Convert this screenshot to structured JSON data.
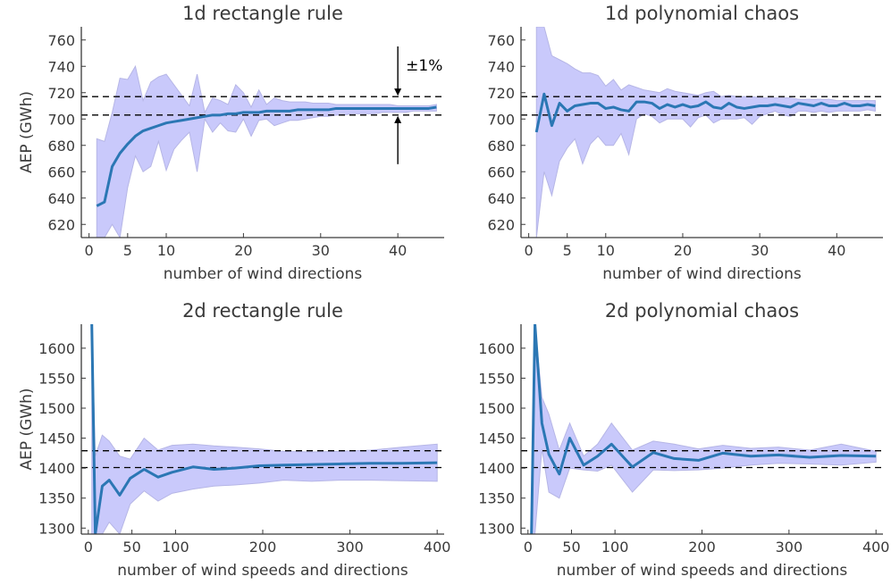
{
  "colors": {
    "line": "#2b77b4",
    "band": "#c9c9fb",
    "band_edge": "#b6b6e6",
    "ref": "#000000",
    "axis": "#3a3a3a"
  },
  "chart_data": [
    {
      "type": "line",
      "title": "1d rectangle rule",
      "xlabel": "number of wind directions",
      "ylabel": "AEP (GWh)",
      "xlim": [
        -1,
        46
      ],
      "ylim": [
        610,
        770
      ],
      "xticks": [
        0,
        5,
        10,
        20,
        30,
        40
      ],
      "yticks": [
        620,
        640,
        660,
        680,
        700,
        720,
        740,
        760
      ],
      "ref_lines": [
        703,
        717
      ],
      "annotation": "±1%",
      "annotation_x": 40,
      "series": [
        {
          "x": [
            1,
            2,
            3,
            4,
            5,
            6,
            7,
            8,
            9,
            10,
            11,
            12,
            13,
            14,
            15,
            16,
            17,
            18,
            19,
            20,
            21,
            22,
            23,
            24,
            25,
            26,
            27,
            28,
            29,
            30,
            31,
            32,
            33,
            34,
            35,
            36,
            37,
            38,
            39,
            40,
            41,
            42,
            43,
            44,
            45
          ],
          "values": [
            634,
            637,
            664,
            674,
            681,
            687,
            691,
            693,
            695,
            697,
            698,
            699,
            700,
            701,
            702,
            703,
            703,
            704,
            704,
            705,
            705,
            705,
            706,
            706,
            706,
            706,
            707,
            707,
            707,
            707,
            707,
            708,
            708,
            708,
            708,
            708,
            708,
            708,
            708,
            708,
            708,
            708,
            708,
            708,
            709
          ]
        }
      ],
      "band_upper": [
        685,
        683,
        705,
        731,
        730,
        740,
        714,
        728,
        732,
        734,
        726,
        718,
        710,
        734,
        705,
        716,
        714,
        711,
        726,
        720,
        709,
        722,
        711,
        716,
        714,
        713,
        713,
        713,
        712,
        712,
        712,
        711,
        711,
        711,
        711,
        711,
        711,
        711,
        711,
        710,
        710,
        710,
        710,
        710,
        711
      ],
      "band_lower": [
        600,
        600,
        620,
        600,
        648,
        672,
        660,
        664,
        683,
        661,
        677,
        684,
        690,
        660,
        700,
        690,
        697,
        691,
        690,
        700,
        687,
        699,
        700,
        695,
        697,
        699,
        699,
        700,
        701,
        702,
        702,
        703,
        703,
        704,
        704,
        704,
        704,
        705,
        705,
        705,
        705,
        706,
        706,
        706,
        706
      ]
    },
    {
      "type": "line",
      "title": "1d polynomial chaos",
      "xlabel": "number of wind directions",
      "ylabel": "",
      "xlim": [
        -1,
        46
      ],
      "ylim": [
        610,
        770
      ],
      "xticks": [
        0,
        5,
        10,
        20,
        30,
        40
      ],
      "yticks": [
        620,
        640,
        660,
        680,
        700,
        720,
        740,
        760
      ],
      "ref_lines": [
        703,
        717
      ],
      "series": [
        {
          "x": [
            1,
            2,
            3,
            4,
            5,
            6,
            7,
            8,
            9,
            10,
            11,
            12,
            13,
            14,
            15,
            16,
            17,
            18,
            19,
            20,
            21,
            22,
            23,
            24,
            25,
            26,
            27,
            28,
            29,
            30,
            31,
            32,
            33,
            34,
            35,
            36,
            37,
            38,
            39,
            40,
            41,
            42,
            43,
            44,
            45
          ],
          "values": [
            690,
            719,
            695,
            712,
            706,
            710,
            711,
            712,
            712,
            708,
            709,
            707,
            706,
            713,
            713,
            712,
            708,
            711,
            709,
            711,
            709,
            710,
            713,
            709,
            708,
            712,
            709,
            708,
            709,
            710,
            710,
            711,
            710,
            709,
            712,
            711,
            710,
            712,
            710,
            710,
            712,
            710,
            710,
            711,
            710
          ]
        }
      ],
      "band_upper": [
        770,
        770,
        748,
        745,
        742,
        738,
        735,
        735,
        733,
        725,
        730,
        722,
        726,
        724,
        722,
        721,
        720,
        723,
        721,
        720,
        719,
        718,
        720,
        721,
        717,
        718,
        717,
        717,
        717,
        716,
        716,
        716,
        716,
        716,
        715,
        715,
        715,
        715,
        715,
        714,
        714,
        714,
        714,
        714,
        714
      ],
      "band_lower": [
        610,
        660,
        642,
        668,
        678,
        685,
        666,
        681,
        687,
        680,
        680,
        689,
        673,
        700,
        704,
        702,
        697,
        700,
        700,
        700,
        694,
        701,
        703,
        697,
        700,
        700,
        700,
        701,
        696,
        702,
        704,
        706,
        703,
        702,
        706,
        706,
        705,
        706,
        705,
        706,
        706,
        706,
        706,
        707,
        706
      ]
    },
    {
      "type": "line",
      "title": "2d rectangle rule",
      "xlabel": "number of wind speeds and directions",
      "ylabel": "AEP (GWh)",
      "xlim": [
        -8,
        408
      ],
      "ylim": [
        1290,
        1640
      ],
      "xticks": [
        0,
        50,
        100,
        200,
        300,
        400
      ],
      "yticks": [
        1300,
        1350,
        1400,
        1450,
        1500,
        1550,
        1600
      ],
      "ref_lines": [
        1401,
        1429
      ],
      "series": [
        {
          "x": [
            4,
            8,
            16,
            24,
            36,
            48,
            64,
            80,
            96,
            120,
            144,
            168,
            196,
            224,
            256,
            288,
            324,
            360,
            400
          ],
          "values": [
            1650,
            1290,
            1370,
            1380,
            1355,
            1383,
            1398,
            1385,
            1393,
            1402,
            1398,
            1400,
            1404,
            1405,
            1406,
            1407,
            1408,
            1408,
            1409
          ]
        }
      ],
      "band_upper": [
        1650,
        1420,
        1455,
        1445,
        1420,
        1415,
        1450,
        1430,
        1438,
        1440,
        1437,
        1435,
        1432,
        1428,
        1427,
        1428,
        1430,
        1435,
        1440
      ],
      "band_lower": [
        1290,
        1290,
        1290,
        1310,
        1290,
        1340,
        1362,
        1345,
        1358,
        1365,
        1370,
        1372,
        1375,
        1380,
        1378,
        1380,
        1380,
        1379,
        1378
      ]
    },
    {
      "type": "line",
      "title": "2d polynomial chaos",
      "xlabel": "number of wind speeds and directions",
      "ylabel": "",
      "xlim": [
        -8,
        408
      ],
      "ylim": [
        1290,
        1640
      ],
      "xticks": [
        0,
        50,
        100,
        200,
        300,
        400
      ],
      "yticks": [
        1300,
        1350,
        1400,
        1450,
        1500,
        1550,
        1600
      ],
      "ref_lines": [
        1401,
        1429
      ],
      "series": [
        {
          "x": [
            4,
            8,
            16,
            24,
            36,
            48,
            64,
            80,
            96,
            120,
            144,
            168,
            196,
            224,
            256,
            288,
            324,
            360,
            400
          ],
          "values": [
            1290,
            1650,
            1475,
            1423,
            1390,
            1450,
            1405,
            1420,
            1440,
            1402,
            1426,
            1416,
            1413,
            1425,
            1420,
            1422,
            1418,
            1421,
            1420
          ]
        }
      ],
      "band_upper": [
        1290,
        1650,
        1518,
        1490,
        1430,
        1475,
        1420,
        1440,
        1475,
        1430,
        1445,
        1440,
        1432,
        1438,
        1433,
        1435,
        1430,
        1440,
        1428
      ],
      "band_lower": [
        1290,
        1290,
        1432,
        1360,
        1350,
        1400,
        1397,
        1395,
        1405,
        1360,
        1397,
        1396,
        1397,
        1400,
        1405,
        1408,
        1407,
        1405,
        1410
      ]
    }
  ]
}
